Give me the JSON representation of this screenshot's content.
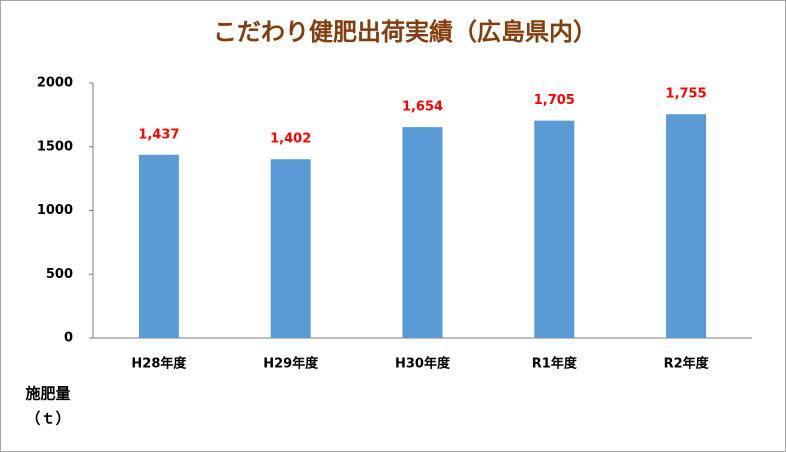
{
  "chart_data": {
    "type": "bar",
    "title": "こだわり健肥出荷実績（広島県内）",
    "ylabel": [
      "施肥量",
      "（ｔ）"
    ],
    "categories": [
      "H28年度",
      "H29年度",
      "H30年度",
      "R1年度",
      "R2年度"
    ],
    "values": [
      1437,
      1402,
      1654,
      1705,
      1755
    ],
    "value_labels": [
      "1,437",
      "1,402",
      "1,654",
      "1,705",
      "1,755"
    ],
    "color": "#5b9bd5",
    "value_label_color": "#ff0000",
    "title_color": "#843c0c",
    "ylim": [
      0,
      2000
    ],
    "yticks": [
      0,
      500,
      1000,
      1500,
      2000
    ],
    "grid": false
  }
}
